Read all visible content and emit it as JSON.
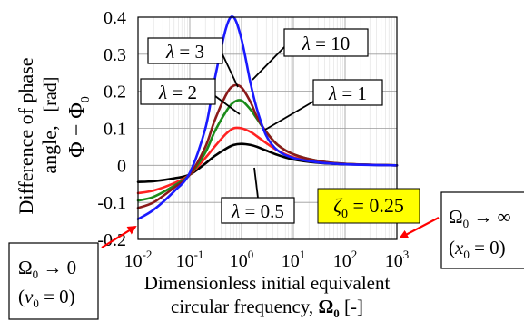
{
  "chart_data": {
    "type": "line",
    "title": "",
    "xlabel_line1": "Dimensionless initial equivalent",
    "xlabel_line2_prefix": "circular frequency, ",
    "xlabel_symbol": "Ω",
    "xlabel_subscript": "0",
    "xlabel_unit": " [-]",
    "ylabel_line1": "Difference of phase",
    "ylabel_line2": "angle,",
    "ylabel_unit": "[rad]",
    "ylabel_symbol": "Φ − Φ",
    "ylabel_subscript": "0",
    "x_scale": "log",
    "xlim": [
      0.01,
      1000
    ],
    "ylim": [
      -0.2,
      0.4
    ],
    "grid": true,
    "x_ticks": [
      {
        "value": 0.01,
        "base": "10",
        "exp": "-2"
      },
      {
        "value": 0.1,
        "base": "10",
        "exp": "-1"
      },
      {
        "value": 1,
        "base": "10",
        "exp": "0"
      },
      {
        "value": 10,
        "base": "10",
        "exp": "1"
      },
      {
        "value": 100,
        "base": "10",
        "exp": "2"
      },
      {
        "value": 1000,
        "base": "10",
        "exp": "3"
      }
    ],
    "y_ticks": [
      {
        "value": 0.4,
        "label": "0.4"
      },
      {
        "value": 0.3,
        "label": "0.3"
      },
      {
        "value": 0.2,
        "label": "0.2"
      },
      {
        "value": 0.1,
        "label": "0.1"
      },
      {
        "value": 0,
        "label": "0"
      },
      {
        "value": -0.1,
        "label": "-0.1"
      },
      {
        "value": -0.2,
        "label": "-0.2"
      }
    ],
    "series": [
      {
        "name": "λ = 10",
        "color": "#1a1aff",
        "x": [
          0.01,
          0.02,
          0.05,
          0.1,
          0.2,
          0.3,
          0.5,
          0.7,
          1,
          1.5,
          2,
          3,
          5,
          10,
          30,
          100,
          1000
        ],
        "y": [
          -0.145,
          -0.12,
          -0.07,
          -0.02,
          0.1,
          0.23,
          0.37,
          0.4,
          0.34,
          0.22,
          0.15,
          0.08,
          0.04,
          0.02,
          0.008,
          0.003,
          0.0
        ]
      },
      {
        "name": "λ = 3",
        "color": "#8b1a1a",
        "x": [
          0.01,
          0.02,
          0.05,
          0.1,
          0.2,
          0.3,
          0.5,
          0.7,
          1,
          1.5,
          2,
          3,
          5,
          10,
          30,
          100,
          1000
        ],
        "y": [
          -0.115,
          -0.1,
          -0.06,
          -0.025,
          0.05,
          0.12,
          0.19,
          0.215,
          0.21,
          0.17,
          0.13,
          0.09,
          0.055,
          0.03,
          0.012,
          0.004,
          0.0
        ]
      },
      {
        "name": "λ = 2",
        "color": "#1a8c1a",
        "x": [
          0.01,
          0.02,
          0.05,
          0.1,
          0.2,
          0.3,
          0.5,
          0.7,
          1,
          1.5,
          2,
          3,
          5,
          10,
          30,
          100,
          1000
        ],
        "y": [
          -0.095,
          -0.085,
          -0.055,
          -0.025,
          0.035,
          0.09,
          0.145,
          0.17,
          0.175,
          0.15,
          0.125,
          0.09,
          0.055,
          0.03,
          0.012,
          0.004,
          0.0
        ]
      },
      {
        "name": "λ = 1",
        "color": "#ff2222",
        "x": [
          0.01,
          0.02,
          0.05,
          0.1,
          0.2,
          0.3,
          0.5,
          0.7,
          1,
          1.5,
          2,
          3,
          5,
          10,
          30,
          100,
          1000
        ],
        "y": [
          -0.075,
          -0.068,
          -0.048,
          -0.025,
          0.02,
          0.05,
          0.085,
          0.1,
          0.1,
          0.09,
          0.078,
          0.06,
          0.04,
          0.022,
          0.01,
          0.004,
          0.0
        ]
      },
      {
        "name": "λ = 0.5",
        "color": "#000000",
        "x": [
          0.01,
          0.02,
          0.05,
          0.1,
          0.2,
          0.3,
          0.5,
          0.7,
          1,
          1.5,
          2,
          3,
          5,
          10,
          30,
          100,
          1000
        ],
        "y": [
          -0.045,
          -0.043,
          -0.035,
          -0.025,
          0.005,
          0.025,
          0.045,
          0.055,
          0.058,
          0.055,
          0.05,
          0.04,
          0.028,
          0.016,
          0.007,
          0.003,
          0.0
        ]
      }
    ],
    "annotations": {
      "lambda_symbol": "λ",
      "labels": [
        {
          "id": "l10",
          "value": "10"
        },
        {
          "id": "l3",
          "value": "3"
        },
        {
          "id": "l2",
          "value": "2"
        },
        {
          "id": "l1",
          "value": "1"
        },
        {
          "id": "l05",
          "value": "0.5"
        }
      ],
      "zeta": {
        "symbol": "ζ",
        "subscript": "0",
        "equals_value": " = 0.25",
        "background": "#ffff00"
      },
      "left_box": {
        "line1_symbol": "Ω",
        "line1_sub": "0",
        "line1_rest": " → 0",
        "line2_symbol": "v",
        "line2_sub": "0",
        "line2_rest": " = 0"
      },
      "right_box": {
        "line1_symbol": "Ω",
        "line1_sub": "0",
        "line1_rest": " → ∞",
        "line2_symbol": "x",
        "line2_sub": "0",
        "line2_rest": " = 0"
      },
      "arrow_color": "#ff0000"
    }
  }
}
